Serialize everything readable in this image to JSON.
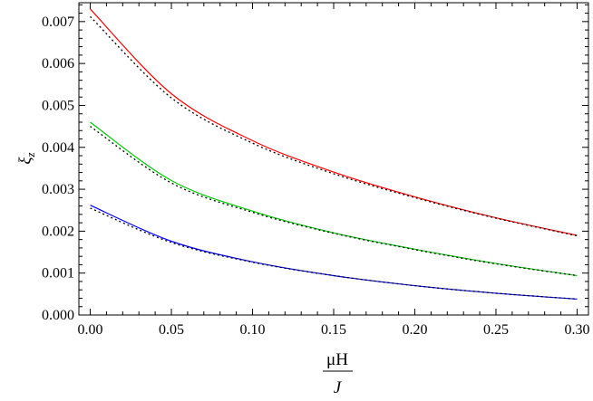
{
  "chart_data": {
    "type": "line",
    "title": "",
    "xlabel_num": "μH",
    "xlabel_den": "J",
    "ylabel": "ξ",
    "ylabel_sub": "z",
    "xlim": [
      -0.007,
      0.307
    ],
    "ylim": [
      0.0,
      0.00745
    ],
    "grid": false,
    "legend": "none",
    "x_ticks": [
      0.0,
      0.05,
      0.1,
      0.15,
      0.2,
      0.25,
      0.3
    ],
    "x_tick_labels": [
      "0.00",
      "0.05",
      "0.10",
      "0.15",
      "0.20",
      "0.25",
      "0.30"
    ],
    "y_ticks": [
      0.0,
      0.001,
      0.002,
      0.003,
      0.004,
      0.005,
      0.006,
      0.007
    ],
    "y_tick_labels": [
      "0.000",
      "0.001",
      "0.002",
      "0.003",
      "0.004",
      "0.005",
      "0.006",
      "0.007"
    ],
    "x": [
      0.0,
      0.05,
      0.1,
      0.15,
      0.2,
      0.25,
      0.3
    ],
    "series": [
      {
        "color": "#ff0000",
        "style": "solid",
        "values": [
          0.0073,
          0.00528,
          0.00416,
          0.00341,
          0.00282,
          0.00232,
          0.0019
        ]
      },
      {
        "color": "#000000",
        "style": "dotted",
        "values": [
          0.00712,
          0.00518,
          0.0041,
          0.00337,
          0.0028,
          0.00231,
          0.00189
        ]
      },
      {
        "color": "#00cc00",
        "style": "solid",
        "values": [
          0.0046,
          0.00321,
          0.00248,
          0.00196,
          0.00157,
          0.00123,
          0.00094
        ]
      },
      {
        "color": "#000000",
        "style": "dotted",
        "values": [
          0.0045,
          0.00315,
          0.00245,
          0.00195,
          0.00156,
          0.00122,
          0.00094
        ]
      },
      {
        "color": "#0000ff",
        "style": "solid",
        "values": [
          0.00262,
          0.00176,
          0.00127,
          0.00094,
          0.0007,
          0.00052,
          0.00038
        ]
      },
      {
        "color": "#000000",
        "style": "dotted",
        "values": [
          0.00255,
          0.00173,
          0.00126,
          0.00094,
          0.0007,
          0.00052,
          0.00038
        ]
      }
    ]
  }
}
